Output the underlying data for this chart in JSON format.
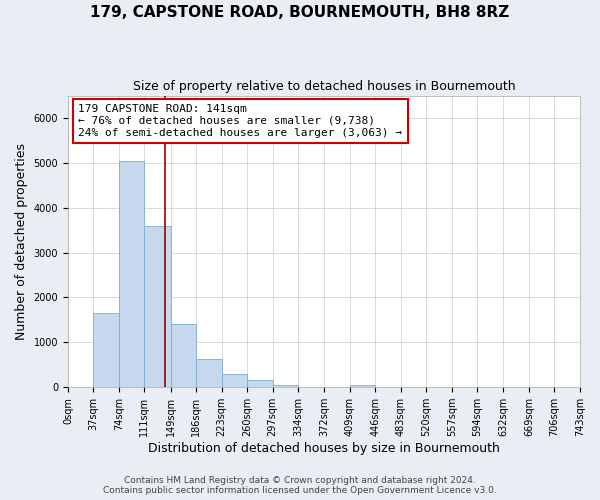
{
  "title": "179, CAPSTONE ROAD, BOURNEMOUTH, BH8 8RZ",
  "subtitle": "Size of property relative to detached houses in Bournemouth",
  "xlabel": "Distribution of detached houses by size in Bournemouth",
  "ylabel": "Number of detached properties",
  "footer_line1": "Contains HM Land Registry data © Crown copyright and database right 2024.",
  "footer_line2": "Contains public sector information licensed under the Open Government Licence v3.0.",
  "bin_edges": [
    0,
    37,
    74,
    111,
    149,
    186,
    223,
    260,
    297,
    334,
    372,
    409,
    446,
    483,
    520,
    557,
    594,
    632,
    669,
    706,
    743
  ],
  "bin_heights": [
    0,
    1650,
    5050,
    3600,
    1420,
    620,
    300,
    150,
    50,
    0,
    0,
    50,
    0,
    0,
    0,
    0,
    0,
    0,
    0,
    0
  ],
  "bar_color": "#c5d8ed",
  "bar_edgecolor": "#7bafd4",
  "property_size": 141,
  "vline_color": "#990000",
  "annotation_line1": "179 CAPSTONE ROAD: 141sqm",
  "annotation_line2": "← 76% of detached houses are smaller (9,738)",
  "annotation_line3": "24% of semi-detached houses are larger (3,063) →",
  "annotation_boxcolor": "white",
  "annotation_boxedgecolor": "#cc0000",
  "ylim": [
    0,
    6500
  ],
  "xlim": [
    0,
    743
  ],
  "tick_labels": [
    "0sqm",
    "37sqm",
    "74sqm",
    "111sqm",
    "149sqm",
    "186sqm",
    "223sqm",
    "260sqm",
    "297sqm",
    "334sqm",
    "372sqm",
    "409sqm",
    "446sqm",
    "483sqm",
    "520sqm",
    "557sqm",
    "594sqm",
    "632sqm",
    "669sqm",
    "706sqm",
    "743sqm"
  ],
  "tick_positions": [
    0,
    37,
    74,
    111,
    149,
    186,
    223,
    260,
    297,
    334,
    372,
    409,
    446,
    483,
    520,
    557,
    594,
    632,
    669,
    706,
    743
  ],
  "title_fontsize": 11,
  "subtitle_fontsize": 9,
  "axis_label_fontsize": 9,
  "tick_fontsize": 7,
  "annotation_fontsize": 8,
  "footer_fontsize": 6.5,
  "background_color": "#e8eef4",
  "plot_background_color": "white",
  "grid_color": "#cccccc"
}
